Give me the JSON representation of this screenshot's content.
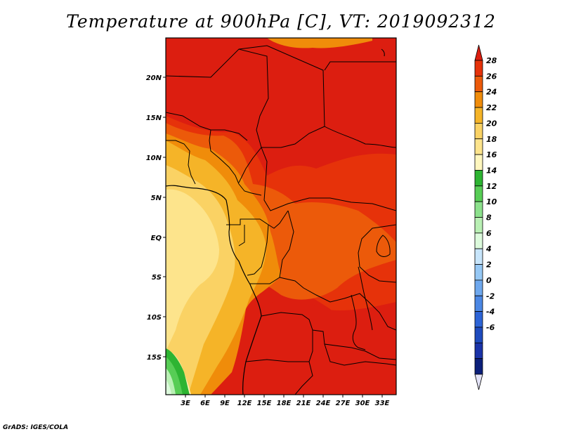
{
  "title": "Temperature at 900hPa [C], VT: 2019092312",
  "footer": "GrADS: IGES/COLA",
  "map": {
    "lat_labels": [
      "20N",
      "15N",
      "10N",
      "5N",
      "EQ",
      "5S",
      "10S",
      "15S"
    ],
    "lon_labels": [
      "3E",
      "6E",
      "9E",
      "12E",
      "15E",
      "18E",
      "21E",
      "24E",
      "27E",
      "30E",
      "33E"
    ],
    "lat_range": [
      -20,
      24.5
    ],
    "lon_range": [
      0,
      35
    ]
  },
  "colorbar": {
    "labels": [
      "28",
      "26",
      "24",
      "22",
      "20",
      "18",
      "16",
      "14",
      "12",
      "10",
      "8",
      "6",
      "4",
      "2",
      "0",
      "-2",
      "-4",
      "-6"
    ],
    "colors": [
      "#dc1e10",
      "#e6320a",
      "#ec5a0a",
      "#f08c0a",
      "#f5b428",
      "#fad264",
      "#fde48c",
      "#fff7be",
      "#2db432",
      "#57cd55",
      "#8ce18c",
      "#b9f0b4",
      "#dcfadc",
      "#c7e5fb",
      "#96c8f5",
      "#6ea8ee",
      "#4b87e4",
      "#2d64d7",
      "#1e4bbe",
      "#1a33a8",
      "#0b1f7a",
      "#e3e3f7"
    ]
  }
}
